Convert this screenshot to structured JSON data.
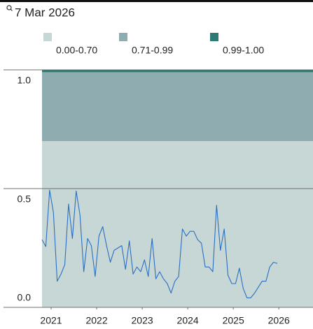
{
  "chart_data": {
    "type": "line",
    "title": "7 Mar 2026",
    "bands": [
      {
        "name": "0.00-0.70",
        "high": 0.7,
        "color": "#c7d7d6"
      },
      {
        "name": "0.71-0.99",
        "high": 0.99,
        "color": "#8fadb0"
      },
      {
        "name": "0.99-1.00",
        "high": 1.0,
        "color": "#2e7a74"
      }
    ],
    "x": [
      2020.8,
      2020.883,
      2020.967,
      2021.05,
      2021.133,
      2021.217,
      2021.3,
      2021.383,
      2021.467,
      2021.55,
      2021.633,
      2021.717,
      2021.8,
      2021.883,
      2021.967,
      2022.05,
      2022.133,
      2022.217,
      2022.3,
      2022.383,
      2022.467,
      2022.55,
      2022.633,
      2022.717,
      2022.8,
      2022.883,
      2022.967,
      2023.05,
      2023.133,
      2023.217,
      2023.3,
      2023.383,
      2023.467,
      2023.55,
      2023.633,
      2023.717,
      2023.8,
      2023.883,
      2023.967,
      2024.05,
      2024.133,
      2024.217,
      2024.3,
      2024.383,
      2024.467,
      2024.55,
      2024.633,
      2024.717,
      2024.8,
      2024.883,
      2024.967,
      2025.05,
      2025.133,
      2025.217,
      2025.3,
      2025.383,
      2025.467,
      2025.55,
      2025.633,
      2025.717,
      2025.8,
      2025.883,
      2025.967
    ],
    "series": [
      {
        "color": "#2b6fc2",
        "values": [
          0.285,
          0.256,
          0.494,
          0.4,
          0.11,
          0.14,
          0.18,
          0.435,
          0.29,
          0.49,
          0.39,
          0.15,
          0.29,
          0.26,
          0.13,
          0.3,
          0.34,
          0.26,
          0.19,
          0.24,
          0.25,
          0.26,
          0.16,
          0.28,
          0.14,
          0.17,
          0.15,
          0.2,
          0.13,
          0.29,
          0.12,
          0.15,
          0.12,
          0.1,
          0.06,
          0.11,
          0.13,
          0.33,
          0.3,
          0.32,
          0.32,
          0.285,
          0.27,
          0.17,
          0.17,
          0.15,
          0.43,
          0.24,
          0.33,
          0.135,
          0.1,
          0.1,
          0.165,
          0.08,
          0.04,
          0.04,
          0.06,
          0.085,
          0.11,
          0.11,
          0.17,
          0.19,
          0.185
        ]
      }
    ],
    "xlim": [
      2020.8,
      2026.75
    ],
    "xticks": [
      2021,
      2022,
      2023,
      2024,
      2025,
      2026
    ],
    "ylim": [
      0,
      1
    ],
    "yticks": [
      {
        "value": 0,
        "label": "0.0"
      },
      0.5,
      {
        "value": 1,
        "label": "1.0"
      }
    ],
    "grid": true
  }
}
